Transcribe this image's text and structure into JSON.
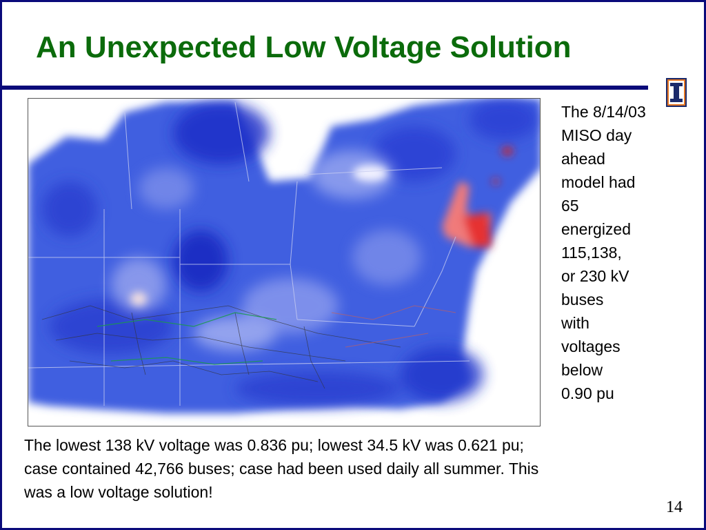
{
  "slide": {
    "title": "An Unexpected Low Voltage Solution",
    "side_text_lines": [
      "The 8/14/03",
      "MISO day",
      "ahead",
      "model had",
      "65",
      "energized",
      "115,138,",
      "or 230 kV",
      "buses",
      "with",
      "voltages",
      "below",
      "0.90 pu"
    ],
    "bottom_text_lines": [
      "The lowest 138 kV voltage was 0.836 pu; lowest 34.5 kV was 0.621 pu;",
      "case contained 42,766 buses; case had been used daily all summer.  This",
      "was a low voltage solution!"
    ],
    "page_number": "14"
  },
  "colors": {
    "title": "#0b6b0b",
    "frame": "#0a0a7a",
    "low_voltage": "#1a2fd6",
    "high_voltage": "#e02020"
  },
  "icons": {
    "logo": "university-of-illinois-logo-icon"
  }
}
